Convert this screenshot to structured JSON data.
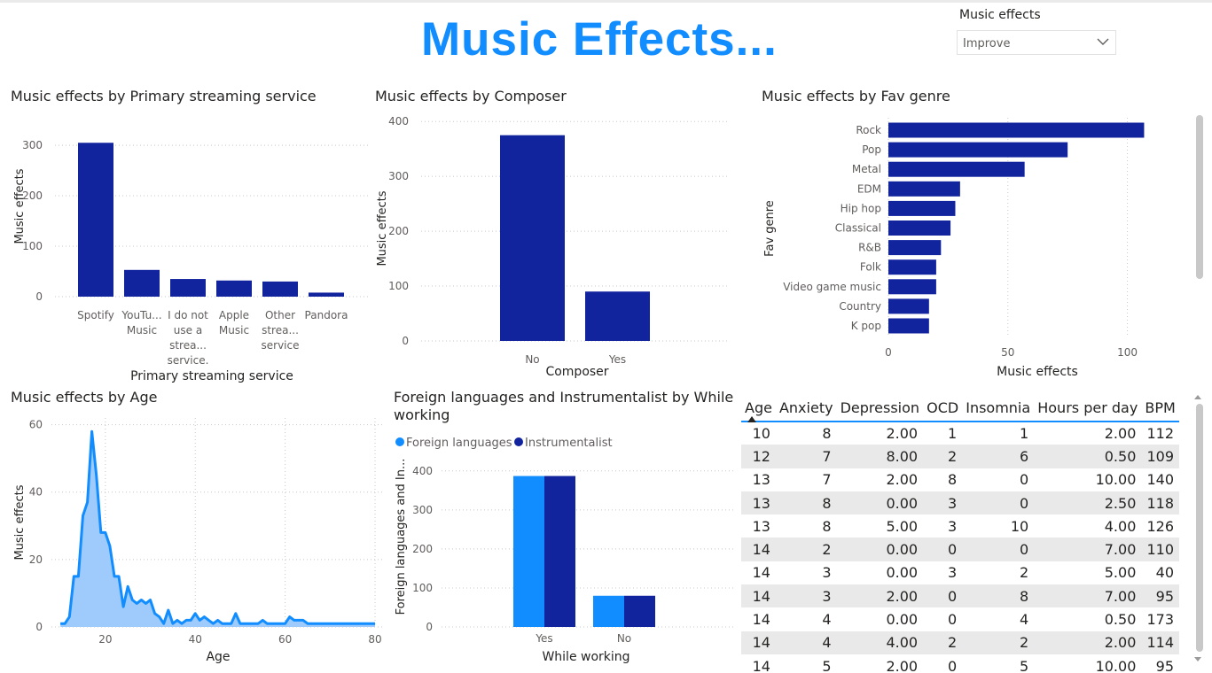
{
  "header": {
    "title": "Music Effects...",
    "slicer_label": "Music effects",
    "slicer_value": "Improve"
  },
  "colors": {
    "navy": "#12239e",
    "blue": "#118dff",
    "area_fill": "#9ecbfb",
    "title_blue": "#118dff"
  },
  "icons": {
    "slicer": "chevron-down-icon",
    "sort": "sort-ascending-icon"
  },
  "streaming": {
    "title": "Music effects by Primary streaming service",
    "chart_data": {
      "type": "bar",
      "categories": [
        "Spotify",
        "YouTube Music",
        "I do not use a streaming service.",
        "Apple Music",
        "Other streaming service",
        "Pandora"
      ],
      "tick_labels": [
        [
          "Spotify"
        ],
        [
          "YouTu...",
          "Music"
        ],
        [
          "I do not",
          "use a",
          "strea...",
          "service."
        ],
        [
          "Apple",
          "Music"
        ],
        [
          "Other",
          "strea...",
          "service"
        ],
        [
          "Pandora"
        ]
      ],
      "values": [
        305,
        53,
        35,
        32,
        30,
        8
      ],
      "xlabel": "Primary streaming service",
      "ylabel": "Music effects",
      "ylim": [
        0,
        330
      ],
      "yticks": [
        0,
        100,
        200,
        300
      ],
      "grid": true
    }
  },
  "composer": {
    "title": "Music effects by Composer",
    "chart_data": {
      "type": "bar",
      "categories": [
        "No",
        "Yes"
      ],
      "values": [
        375,
        90
      ],
      "xlabel": "Composer",
      "ylabel": "Music effects",
      "ylim": [
        0,
        410
      ],
      "yticks": [
        0,
        100,
        200,
        300,
        400
      ],
      "grid": true
    }
  },
  "genre": {
    "title": "Music effects by Fav genre",
    "chart_data": {
      "type": "bar",
      "orientation": "horizontal",
      "categories": [
        "Rock",
        "Pop",
        "Metal",
        "EDM",
        "Hip hop",
        "Classical",
        "R&B",
        "Folk",
        "Video game music",
        "Country",
        "K pop"
      ],
      "values": [
        107,
        75,
        57,
        30,
        28,
        26,
        22,
        20,
        20,
        17,
        17
      ],
      "xlabel": "Music effects",
      "ylabel": "Fav genre",
      "xlim": [
        0,
        115
      ],
      "xticks": [
        0,
        50,
        100
      ],
      "grid": true
    }
  },
  "age": {
    "title": "Music effects by Age",
    "chart_data": {
      "type": "area",
      "x": [
        10,
        11,
        12,
        13,
        14,
        15,
        16,
        17,
        18,
        19,
        20,
        21,
        22,
        23,
        24,
        25,
        26,
        27,
        28,
        29,
        30,
        31,
        32,
        33,
        34,
        35,
        36,
        37,
        38,
        39,
        40,
        41,
        42,
        43,
        44,
        45,
        46,
        47,
        48,
        49,
        50,
        51,
        52,
        53,
        54,
        55,
        56,
        57,
        58,
        59,
        60,
        61,
        62,
        63,
        64,
        65,
        70,
        73,
        80
      ],
      "y": [
        1,
        1,
        3,
        15,
        15,
        33,
        37,
        58,
        45,
        28,
        28,
        24,
        15,
        15,
        6,
        12,
        8,
        7,
        8,
        7,
        8,
        4,
        3,
        1,
        5,
        1,
        2,
        1,
        2,
        2,
        4,
        2,
        3,
        2,
        1,
        2,
        1,
        1,
        1,
        4,
        1,
        1,
        1,
        1,
        1,
        2,
        1,
        1,
        1,
        1,
        1,
        3,
        2,
        2,
        2,
        1,
        1,
        1,
        1
      ],
      "xlabel": "Age",
      "ylabel": "Music effects",
      "xlim": [
        8,
        80
      ],
      "ylim": [
        0,
        62
      ],
      "xticks": [
        20,
        40,
        60,
        80
      ],
      "yticks": [
        0,
        20,
        40,
        60
      ],
      "grid": true
    }
  },
  "working": {
    "title_line1": "Foreign languages and Instrumentalist by While",
    "title_line2": "working",
    "legend": [
      "Foreign languages",
      "Instrumentalist"
    ],
    "chart_data": {
      "type": "bar",
      "categories": [
        "Yes",
        "No"
      ],
      "series": [
        {
          "name": "Foreign languages",
          "values": [
            387,
            80
          ]
        },
        {
          "name": "Instrumentalist",
          "values": [
            387,
            80
          ]
        }
      ],
      "xlabel": "While working",
      "ylabel": "Foreign languages and In...",
      "ylim": [
        0,
        420
      ],
      "yticks": [
        0,
        100,
        200,
        300,
        400
      ],
      "grid": true
    }
  },
  "table": {
    "columns": [
      "Age",
      "Anxiety",
      "Depression",
      "OCD",
      "Insomnia",
      "Hours per day",
      "BPM"
    ],
    "rows": [
      [
        "10",
        "8",
        "2.00",
        "1",
        "1",
        "2.00",
        "112"
      ],
      [
        "12",
        "7",
        "8.00",
        "2",
        "6",
        "0.50",
        "109"
      ],
      [
        "13",
        "7",
        "2.00",
        "8",
        "0",
        "10.00",
        "140"
      ],
      [
        "13",
        "8",
        "0.00",
        "3",
        "0",
        "2.50",
        "118"
      ],
      [
        "13",
        "8",
        "5.00",
        "3",
        "10",
        "4.00",
        "126"
      ],
      [
        "14",
        "2",
        "0.00",
        "0",
        "0",
        "7.00",
        "110"
      ],
      [
        "14",
        "3",
        "0.00",
        "3",
        "2",
        "5.00",
        "40"
      ],
      [
        "14",
        "3",
        "2.00",
        "0",
        "8",
        "7.00",
        "95"
      ],
      [
        "14",
        "4",
        "0.00",
        "0",
        "4",
        "0.50",
        "173"
      ],
      [
        "14",
        "4",
        "4.00",
        "2",
        "2",
        "2.00",
        "114"
      ],
      [
        "14",
        "5",
        "2.00",
        "0",
        "5",
        "10.00",
        "95"
      ]
    ]
  }
}
